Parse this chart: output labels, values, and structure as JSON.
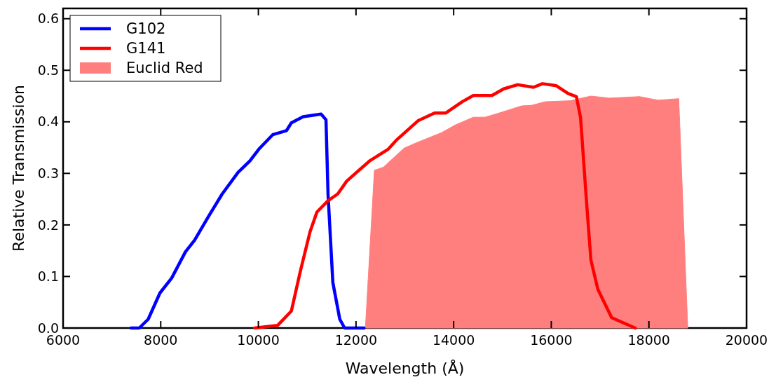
{
  "chart_data": {
    "type": "line",
    "xlabel": "Wavelength (Å)",
    "ylabel": "Relative Transmission",
    "xlim": [
      6000,
      20000
    ],
    "xticks": [
      6000,
      8000,
      10000,
      12000,
      14000,
      16000,
      18000,
      20000
    ],
    "ylim": [
      0,
      0.62
    ],
    "yticks": [
      {
        "value": 0,
        "label": "0.0"
      },
      {
        "value": 0.1,
        "label": "0.1"
      },
      {
        "value": 0.2,
        "label": "0.2"
      },
      {
        "value": 0.3,
        "label": "0.3"
      },
      {
        "value": 0.4,
        "label": "0.4"
      },
      {
        "value": 0.5,
        "label": "0.5"
      },
      {
        "value": 0.6,
        "label": "0.6"
      }
    ],
    "grid": false,
    "legend": "top left",
    "series": [
      {
        "name": "G102",
        "color": "#0000ff",
        "x": [
          7390,
          7560,
          7743,
          7984,
          8225,
          8508,
          8692,
          8976,
          9259,
          9585,
          9826,
          10010,
          10294,
          10577,
          10676,
          10917,
          11285,
          11385,
          11427,
          11526,
          11668,
          11767,
          12164
        ],
        "values": [
          0,
          0,
          0.017,
          0.068,
          0.097,
          0.148,
          0.17,
          0.216,
          0.26,
          0.302,
          0.324,
          0.347,
          0.375,
          0.383,
          0.398,
          0.41,
          0.415,
          0.404,
          0.26,
          0.088,
          0.017,
          0,
          0
        ]
      },
      {
        "name": "G141",
        "color": "#ff0000",
        "x": [
          9925,
          10393,
          10676,
          10860,
          11059,
          11200,
          11427,
          11625,
          11810,
          12277,
          12660,
          12844,
          13270,
          13609,
          13836,
          14176,
          14403,
          14785,
          15026,
          15310,
          15636,
          15820,
          16103,
          16344,
          16514,
          16600,
          16727,
          16812,
          16954,
          17237,
          17719
        ],
        "values": [
          0,
          0.005,
          0.033,
          0.11,
          0.187,
          0.225,
          0.247,
          0.26,
          0.285,
          0.324,
          0.347,
          0.366,
          0.402,
          0.417,
          0.417,
          0.439,
          0.451,
          0.451,
          0.464,
          0.472,
          0.467,
          0.474,
          0.47,
          0.455,
          0.449,
          0.408,
          0.238,
          0.132,
          0.075,
          0.02,
          0
        ]
      },
      {
        "name": "Euclid Red",
        "type": "area",
        "color": "#ff7f7f",
        "x": [
          12192,
          12376,
          12561,
          12986,
          13227,
          13751,
          14035,
          14403,
          14644,
          14927,
          15395,
          15593,
          15877,
          16387,
          16812,
          17194,
          17804,
          18186,
          18611,
          18796
        ],
        "values": [
          0,
          0.306,
          0.312,
          0.349,
          0.359,
          0.379,
          0.394,
          0.409,
          0.409,
          0.417,
          0.431,
          0.432,
          0.439,
          0.441,
          0.45,
          0.446,
          0.449,
          0.442,
          0.445,
          0
        ]
      }
    ]
  }
}
